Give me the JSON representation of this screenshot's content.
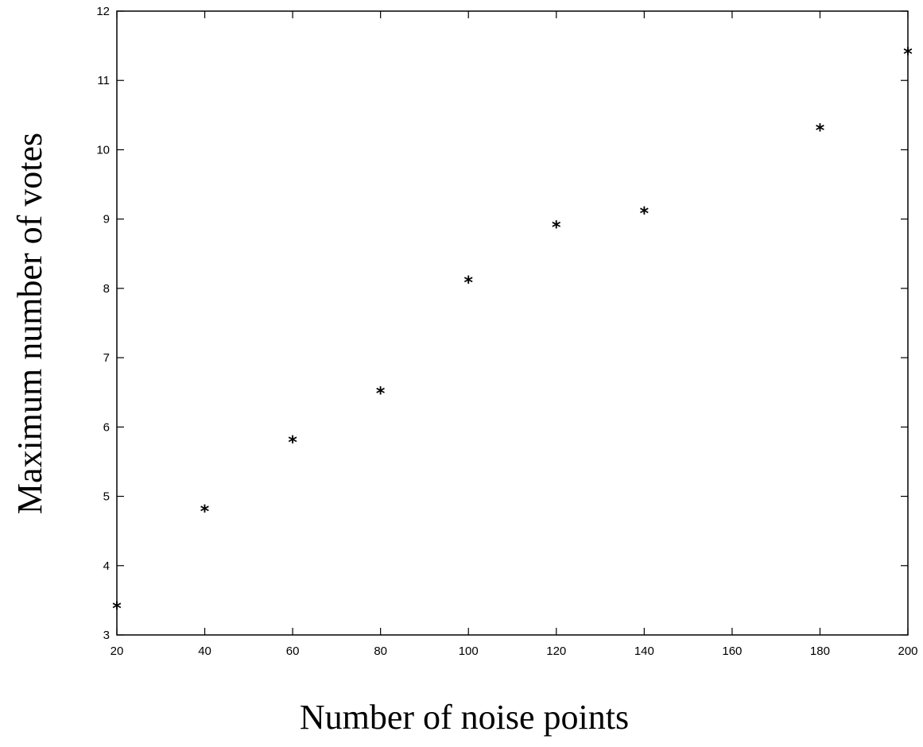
{
  "chart_data": {
    "type": "scatter",
    "title": "",
    "xlabel": "Number of noise points",
    "ylabel": "Maximum number of votes",
    "xlim": [
      20,
      200
    ],
    "ylim": [
      3,
      12
    ],
    "xticks": [
      20,
      40,
      60,
      80,
      100,
      120,
      140,
      160,
      180,
      200
    ],
    "yticks": [
      3,
      4,
      5,
      6,
      7,
      8,
      9,
      10,
      11,
      12
    ],
    "grid": false,
    "legend": "none",
    "marker": "*",
    "marker_color": "#000000",
    "series": [
      {
        "points": [
          {
            "x": 20,
            "y": 3.4
          },
          {
            "x": 40,
            "y": 4.8
          },
          {
            "x": 60,
            "y": 5.8
          },
          {
            "x": 80,
            "y": 6.5
          },
          {
            "x": 100,
            "y": 8.1
          },
          {
            "x": 120,
            "y": 8.9
          },
          {
            "x": 140,
            "y": 9.1
          },
          {
            "x": 180,
            "y": 10.3
          },
          {
            "x": 200,
            "y": 11.4
          }
        ]
      }
    ]
  }
}
